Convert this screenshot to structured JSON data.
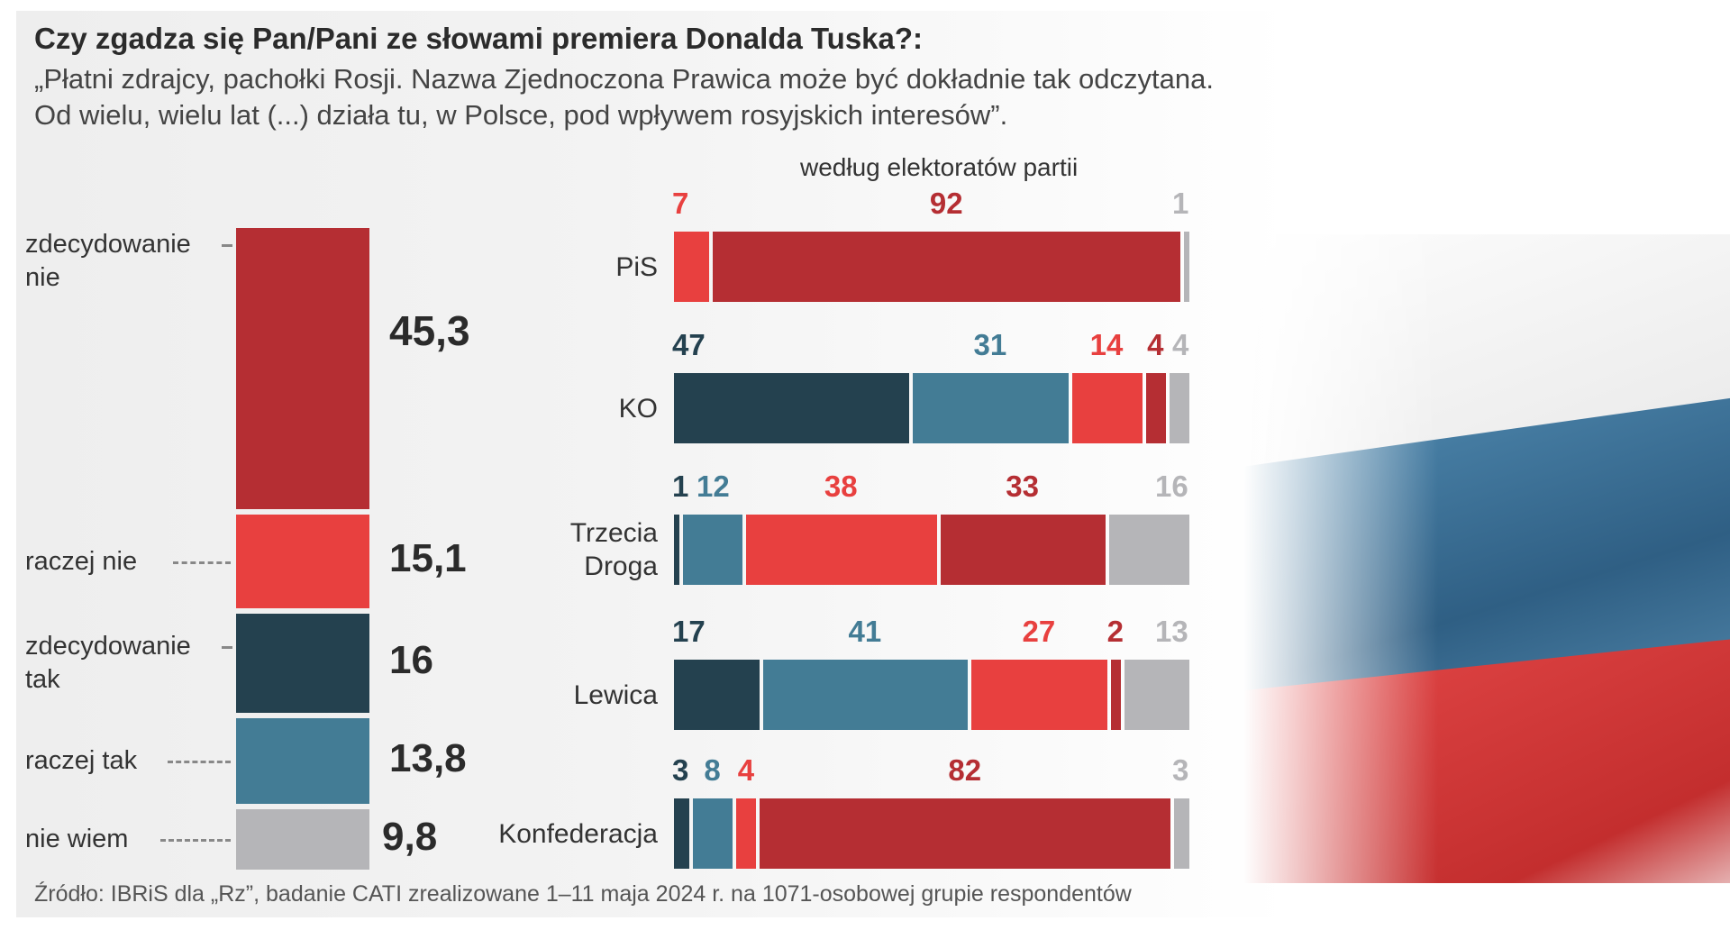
{
  "header": {
    "title": "Czy zgadza się Pan/Pani ze słowami premiera Donalda Tuska?:",
    "subtitle_line1": "„Płatni zdrajcy, pachołki Rosji. Nazwa Zjednoczona Prawica może być dokładnie tak odczytana.",
    "subtitle_line2": "Od wielu, wielu lat (...) działa tu, w Polsce, pod wpływem rosyjskich interesów”."
  },
  "section_label": "według elektoratów partii",
  "source": "Źródło: IBRiS dla „Rz”, badanie CATI zrealizowane 1–11 maja 2024 r. na 1071-osobowej grupie respondentów",
  "colors": {
    "zdecydowanie_nie": "#b52e33",
    "raczej_nie": "#e8403f",
    "zdecydowanie_tak": "#24414f",
    "raczej_tak": "#437c95",
    "nie_wiem": "#b5b5b8"
  },
  "chart_data": [
    {
      "type": "bar",
      "stacked": true,
      "orientation": "vertical",
      "categories": [
        "zdecydowanie nie",
        "raczej nie",
        "zdecydowanie tak",
        "raczej tak",
        "nie wiem"
      ],
      "values": [
        45.3,
        15.1,
        16,
        13.8,
        9.8
      ],
      "value_labels": [
        "45,3",
        "15,1",
        "16",
        "13,8",
        "9,8"
      ]
    },
    {
      "type": "bar",
      "stacked": true,
      "orientation": "horizontal",
      "title": "według elektoratów partii",
      "categories": [
        "PiS",
        "KO",
        "Trzecia Droga",
        "Lewica",
        "Konfederacja"
      ],
      "category_lines": [
        [
          "PiS"
        ],
        [
          "KO"
        ],
        [
          "Trzecia",
          "Droga"
        ],
        [
          "Lewica"
        ],
        [
          "Konfederacja"
        ]
      ],
      "series": [
        {
          "name": "zdecydowanie tak",
          "values": [
            0,
            47,
            1,
            17,
            3
          ]
        },
        {
          "name": "raczej tak",
          "values": [
            0,
            31,
            12,
            41,
            8
          ]
        },
        {
          "name": "raczej nie",
          "values": [
            7,
            14,
            38,
            27,
            4
          ]
        },
        {
          "name": "zdecydowanie nie",
          "values": [
            92,
            4,
            33,
            2,
            82
          ]
        },
        {
          "name": "nie wiem",
          "values": [
            1,
            4,
            16,
            13,
            3
          ]
        }
      ]
    }
  ]
}
